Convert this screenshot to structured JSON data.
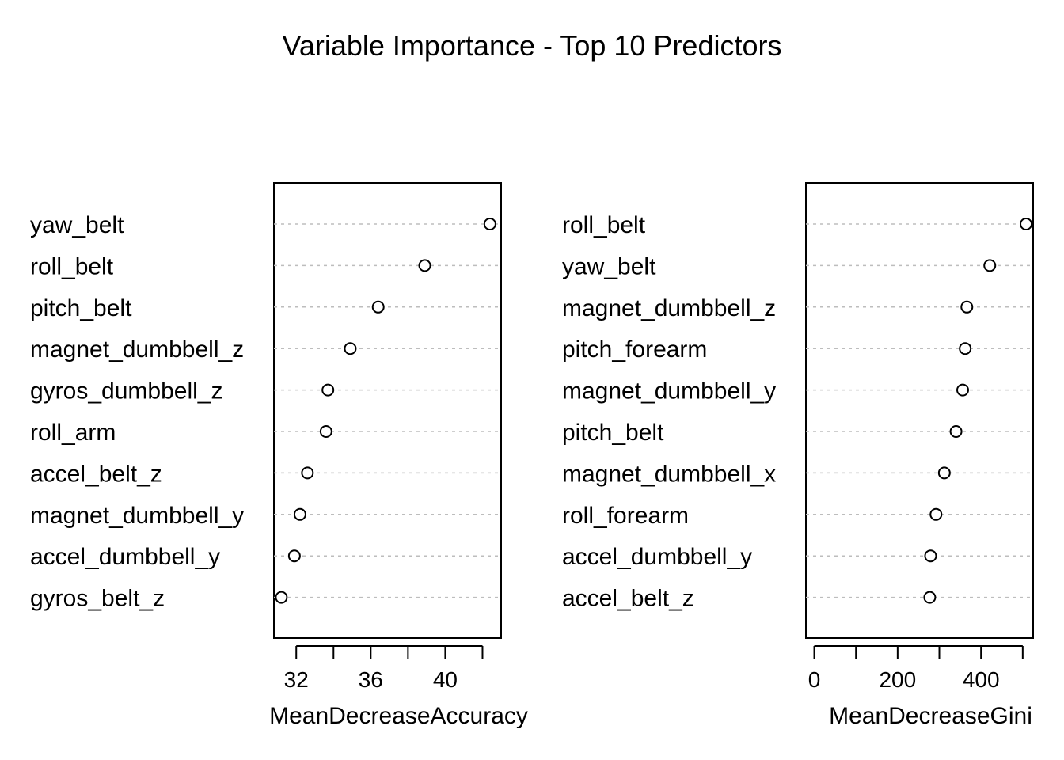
{
  "title": "Variable Importance - Top 10 Predictors",
  "chart_data": [
    {
      "type": "scatter",
      "subtype": "dotchart",
      "xlabel": "MeanDecreaseAccuracy",
      "xlim": [
        30.8,
        43.0
      ],
      "xticks": [
        30,
        32,
        34,
        36,
        38,
        40,
        42
      ],
      "xtick_labels": [
        {
          "value": 32,
          "label": "32"
        },
        {
          "value": 36,
          "label": "36"
        },
        {
          "value": 40,
          "label": "40"
        }
      ],
      "grid": "dotted horizontal guide lines",
      "categories": [
        "yaw_belt",
        "roll_belt",
        "pitch_belt",
        "magnet_dumbbell_z",
        "gyros_dumbbell_z",
        "roll_arm",
        "accel_belt_z",
        "magnet_dumbbell_y",
        "accel_dumbbell_y",
        "gyros_belt_z"
      ],
      "values": [
        42.4,
        38.9,
        36.4,
        34.9,
        33.7,
        33.6,
        32.6,
        32.2,
        31.9,
        31.2
      ]
    },
    {
      "type": "scatter",
      "subtype": "dotchart",
      "xlabel": "MeanDecreaseGini",
      "xlim": [
        -20,
        525
      ],
      "xticks": [
        0,
        100,
        200,
        300,
        400,
        500
      ],
      "xtick_labels": [
        {
          "value": 0,
          "label": "0"
        },
        {
          "value": 200,
          "label": "200"
        },
        {
          "value": 400,
          "label": "400"
        }
      ],
      "grid": "dotted horizontal guide lines",
      "categories": [
        "roll_belt",
        "yaw_belt",
        "magnet_dumbbell_z",
        "pitch_forearm",
        "magnet_dumbbell_y",
        "pitch_belt",
        "magnet_dumbbell_x",
        "roll_forearm",
        "accel_dumbbell_y",
        "accel_belt_z"
      ],
      "values": [
        508,
        421,
        366,
        362,
        356,
        340,
        312,
        292,
        279,
        277
      ]
    }
  ]
}
